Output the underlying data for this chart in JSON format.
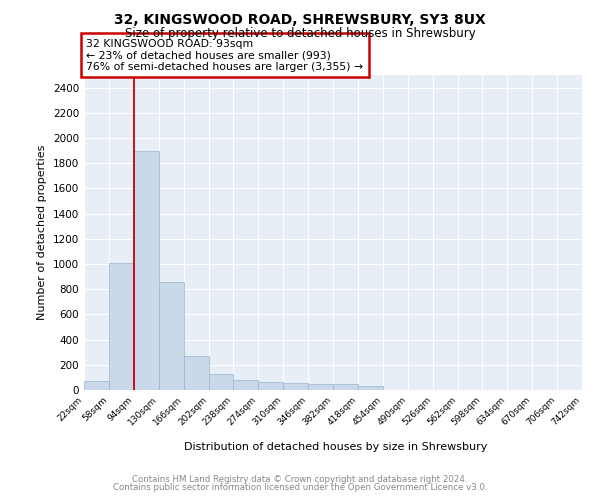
{
  "title": "32, KINGSWOOD ROAD, SHREWSBURY, SY3 8UX",
  "subtitle": "Size of property relative to detached houses in Shrewsbury",
  "xlabel": "Distribution of detached houses by size in Shrewsbury",
  "ylabel": "Number of detached properties",
  "bar_color": "#c9d9ea",
  "bar_edge_color": "#9ab4cc",
  "background_color": "#e8eef6",
  "grid_color": "#ffffff",
  "annotation_box_color": "#cc0000",
  "annotation_text": "32 KINGSWOOD ROAD: 93sqm\n← 23% of detached houses are smaller (993)\n76% of semi-detached houses are larger (3,355) →",
  "property_line_x": 94,
  "ylim": [
    0,
    2500
  ],
  "yticks": [
    0,
    200,
    400,
    600,
    800,
    1000,
    1200,
    1400,
    1600,
    1800,
    2000,
    2200,
    2400
  ],
  "bin_edges": [
    22,
    58,
    94,
    130,
    166,
    202,
    238,
    274,
    310,
    346,
    382,
    418,
    454,
    490,
    526,
    562,
    598,
    634,
    670,
    706,
    742
  ],
  "bin_counts": [
    75,
    1010,
    1900,
    860,
    270,
    130,
    80,
    60,
    55,
    50,
    45,
    30,
    0,
    0,
    0,
    0,
    0,
    0,
    0,
    0
  ],
  "footnote1": "Contains HM Land Registry data © Crown copyright and database right 2024.",
  "footnote2": "Contains public sector information licensed under the Open Government Licence v3.0."
}
